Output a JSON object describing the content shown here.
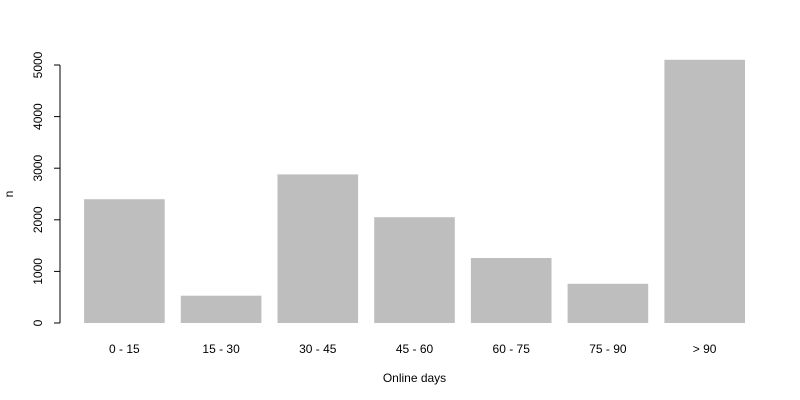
{
  "chart_data": {
    "type": "bar",
    "title": "",
    "xlabel": "Online days",
    "ylabel": "n",
    "categories": [
      "0 - 15",
      "15 - 30",
      "30 - 45",
      "45 - 60",
      "60 - 75",
      "75 - 90",
      "> 90"
    ],
    "values": [
      2400,
      530,
      2880,
      2050,
      1260,
      760,
      5100
    ],
    "ylim": [
      0,
      5000
    ],
    "yticks": [
      0,
      1000,
      2000,
      3000,
      4000,
      5000
    ],
    "grid": false,
    "legend": "none",
    "bar_color": "#bebebe"
  }
}
